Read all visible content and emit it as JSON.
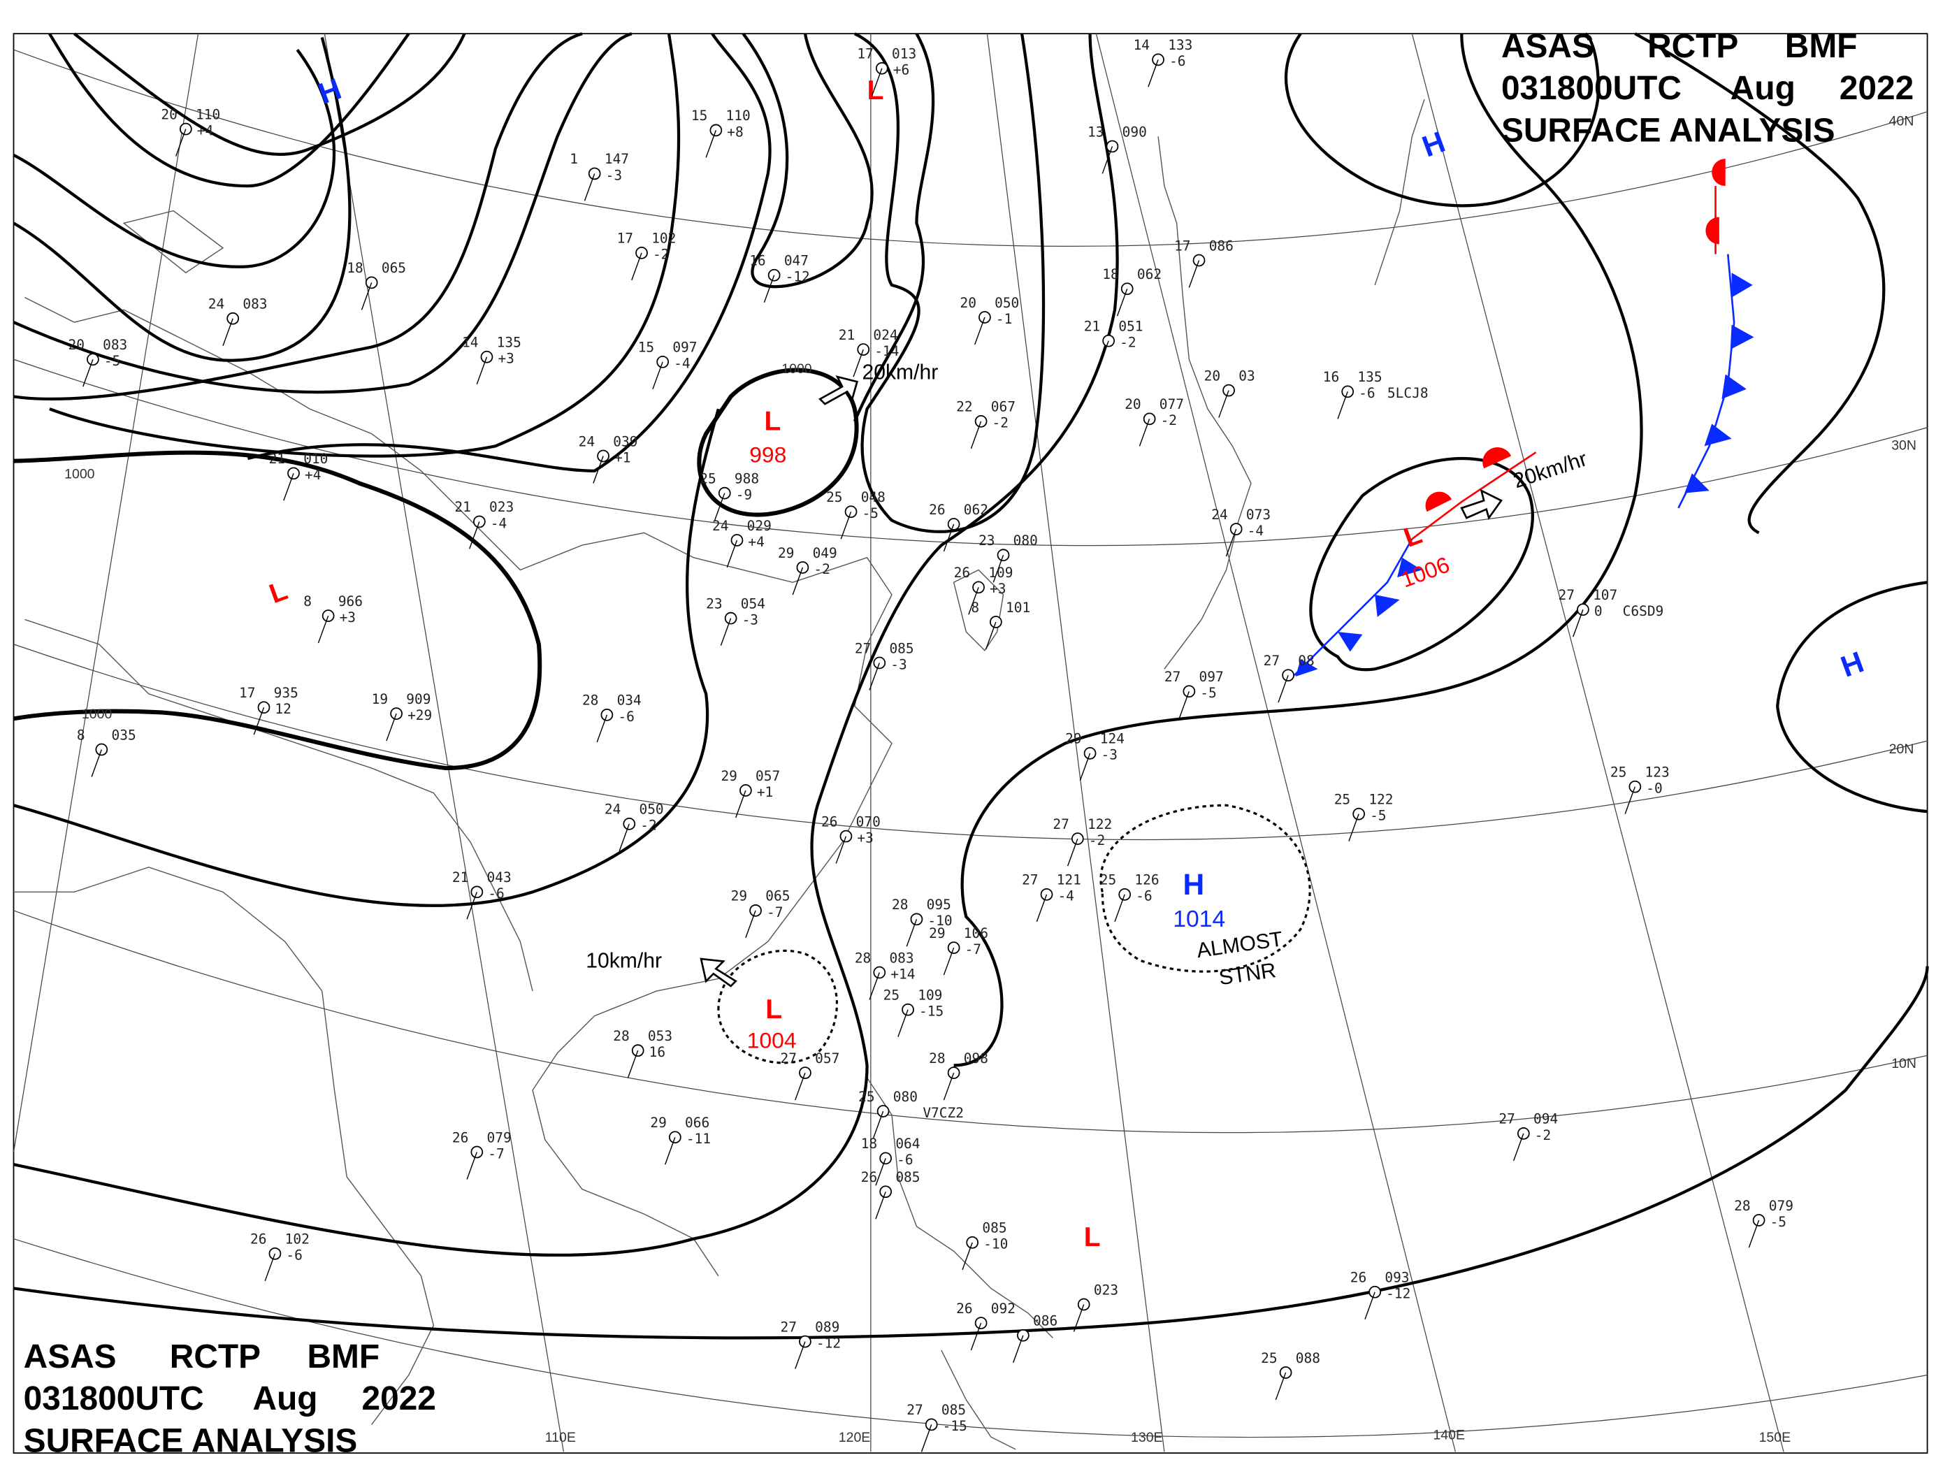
{
  "header": {
    "line1": [
      "ASAS",
      "RCTP",
      "BMF"
    ],
    "line2": [
      "031800UTC",
      "Aug",
      "2022"
    ],
    "line3": "SURFACE ANALYSIS"
  },
  "colors": {
    "high": "#0a2bff",
    "low": "#ff0000",
    "warm_front": "#ff0000",
    "cold_front": "#0a2bff",
    "isobar": "#000000"
  },
  "latitude_labels": [
    "40N",
    "30N",
    "20N",
    "10N"
  ],
  "longitude_labels": [
    "110E",
    "120E",
    "130E",
    "140E",
    "150E"
  ],
  "isobar_labels": [
    "1000",
    "1000",
    "1000"
  ],
  "centers": [
    {
      "type": "H",
      "value": ""
    },
    {
      "type": "H",
      "value": ""
    },
    {
      "type": "H",
      "value": ""
    },
    {
      "type": "L",
      "value": ""
    },
    {
      "type": "L",
      "value": ""
    },
    {
      "type": "L",
      "value": "998"
    },
    {
      "type": "L",
      "value": "1006"
    },
    {
      "type": "H",
      "value": "1014"
    },
    {
      "type": "L",
      "value": "1004"
    },
    {
      "type": "L",
      "value": ""
    }
  ],
  "motion": [
    {
      "speed": "20km/hr"
    },
    {
      "speed": "20km/hr"
    },
    {
      "speed": "10km/hr"
    }
  ],
  "annotations": {
    "stationary": [
      "ALMOST",
      "STNR"
    ]
  },
  "stations": [
    {
      "t": "20",
      "p": "110",
      "d": "+4"
    },
    {
      "t": "1",
      "p": "147",
      "d": "-3"
    },
    {
      "t": "15",
      "p": "110",
      "d": "+8"
    },
    {
      "t": "17",
      "p": "013",
      "d": "+6"
    },
    {
      "t": "14",
      "p": "133",
      "d": "-6"
    },
    {
      "t": "13",
      "p": "090",
      "d": ""
    },
    {
      "t": "18",
      "p": "065",
      "d": ""
    },
    {
      "t": "17",
      "p": "102",
      "d": "-2"
    },
    {
      "t": "16",
      "p": "047",
      "d": "-12"
    },
    {
      "t": "24",
      "p": "083",
      "d": ""
    },
    {
      "t": "20",
      "p": "083",
      "d": "-5"
    },
    {
      "t": "14",
      "p": "135",
      "d": "+3"
    },
    {
      "t": "15",
      "p": "097",
      "d": "-4"
    },
    {
      "t": "21",
      "p": "024",
      "d": "-14"
    },
    {
      "t": "20",
      "p": "050",
      "d": "-1"
    },
    {
      "t": "18",
      "p": "062",
      "d": ""
    },
    {
      "t": "17",
      "p": "086",
      "d": ""
    },
    {
      "t": "21",
      "p": "051",
      "d": "-2"
    },
    {
      "t": "22",
      "p": "067",
      "d": "-2"
    },
    {
      "t": "20",
      "p": "077",
      "d": "-2"
    },
    {
      "t": "20",
      "p": "03",
      "d": ""
    },
    {
      "t": "16",
      "p": "135",
      "d": "-6",
      "id": "5LCJ8"
    },
    {
      "t": "21",
      "p": "010",
      "d": "+4"
    },
    {
      "t": "24",
      "p": "039",
      "d": "+1"
    },
    {
      "t": "25",
      "p": "988",
      "d": "-9"
    },
    {
      "t": "21",
      "p": "023",
      "d": "-4"
    },
    {
      "t": "24",
      "p": "029",
      "d": "+4"
    },
    {
      "t": "25",
      "p": "048",
      "d": "-5"
    },
    {
      "t": "26",
      "p": "062",
      "d": ""
    },
    {
      "t": "23",
      "p": "080",
      "d": ""
    },
    {
      "t": "24",
      "p": "073",
      "d": "-4"
    },
    {
      "t": "29",
      "p": "049",
      "d": "-2"
    },
    {
      "t": "26",
      "p": "109",
      "d": "+3"
    },
    {
      "t": "8",
      "p": "966",
      "d": "+3"
    },
    {
      "t": "23",
      "p": "054",
      "d": "-3"
    },
    {
      "t": "8",
      "p": "101",
      "d": ""
    },
    {
      "t": "27",
      "p": "085",
      "d": "-3"
    },
    {
      "t": "27",
      "p": "097",
      "d": "-5"
    },
    {
      "t": "27",
      "p": "08",
      "d": ""
    },
    {
      "t": "27",
      "p": "107",
      "d": "0",
      "id": "C6SD9"
    },
    {
      "t": "19",
      "p": "909",
      "d": "+29"
    },
    {
      "t": "17",
      "p": "935",
      "d": "12"
    },
    {
      "t": "28",
      "p": "034",
      "d": "-6"
    },
    {
      "t": "29",
      "p": "124",
      "d": "-3"
    },
    {
      "t": "8",
      "p": "035",
      "d": ""
    },
    {
      "t": "29",
      "p": "057",
      "d": "+1"
    },
    {
      "t": "24",
      "p": "050",
      "d": "-2"
    },
    {
      "t": "26",
      "p": "070",
      "d": "+3"
    },
    {
      "t": "27",
      "p": "122",
      "d": "-2"
    },
    {
      "t": "25",
      "p": "122",
      "d": "-5"
    },
    {
      "t": "25",
      "p": "123",
      "d": "-0"
    },
    {
      "t": "21",
      "p": "043",
      "d": "-6"
    },
    {
      "t": "29",
      "p": "065",
      "d": "-7"
    },
    {
      "t": "27",
      "p": "121",
      "d": "-4"
    },
    {
      "t": "25",
      "p": "126",
      "d": "-6"
    },
    {
      "t": "28",
      "p": "095",
      "d": "-10"
    },
    {
      "t": "29",
      "p": "106",
      "d": "-7"
    },
    {
      "t": "28",
      "p": "083",
      "d": "+14"
    },
    {
      "t": "25",
      "p": "109",
      "d": "-15"
    },
    {
      "t": "28",
      "p": "053",
      "d": "16"
    },
    {
      "t": "27",
      "p": "057",
      "d": ""
    },
    {
      "t": "28",
      "p": "098",
      "d": ""
    },
    {
      "t": "25",
      "p": "080",
      "d": "",
      "id": "V7CZ2"
    },
    {
      "t": "29",
      "p": "066",
      "d": "-11"
    },
    {
      "t": "26",
      "p": "079",
      "d": "-7"
    },
    {
      "t": "18",
      "p": "064",
      "d": "-6"
    },
    {
      "t": "27",
      "p": "094",
      "d": "-2"
    },
    {
      "t": "26",
      "p": "085",
      "d": ""
    },
    {
      "t": "26",
      "p": "102",
      "d": "-6"
    },
    {
      "t": "",
      "p": "085",
      "d": "-10"
    },
    {
      "t": "28",
      "p": "079",
      "d": "-5"
    },
    {
      "t": "27",
      "p": "089",
      "d": "-12"
    },
    {
      "t": "26",
      "p": "092",
      "d": ""
    },
    {
      "t": "26",
      "p": "093",
      "d": "-12"
    },
    {
      "t": "",
      "p": "086",
      "d": ""
    },
    {
      "t": "",
      "p": "023",
      "d": ""
    },
    {
      "t": "25",
      "p": "088",
      "d": ""
    },
    {
      "t": "27",
      "p": "085",
      "d": "-15"
    }
  ]
}
